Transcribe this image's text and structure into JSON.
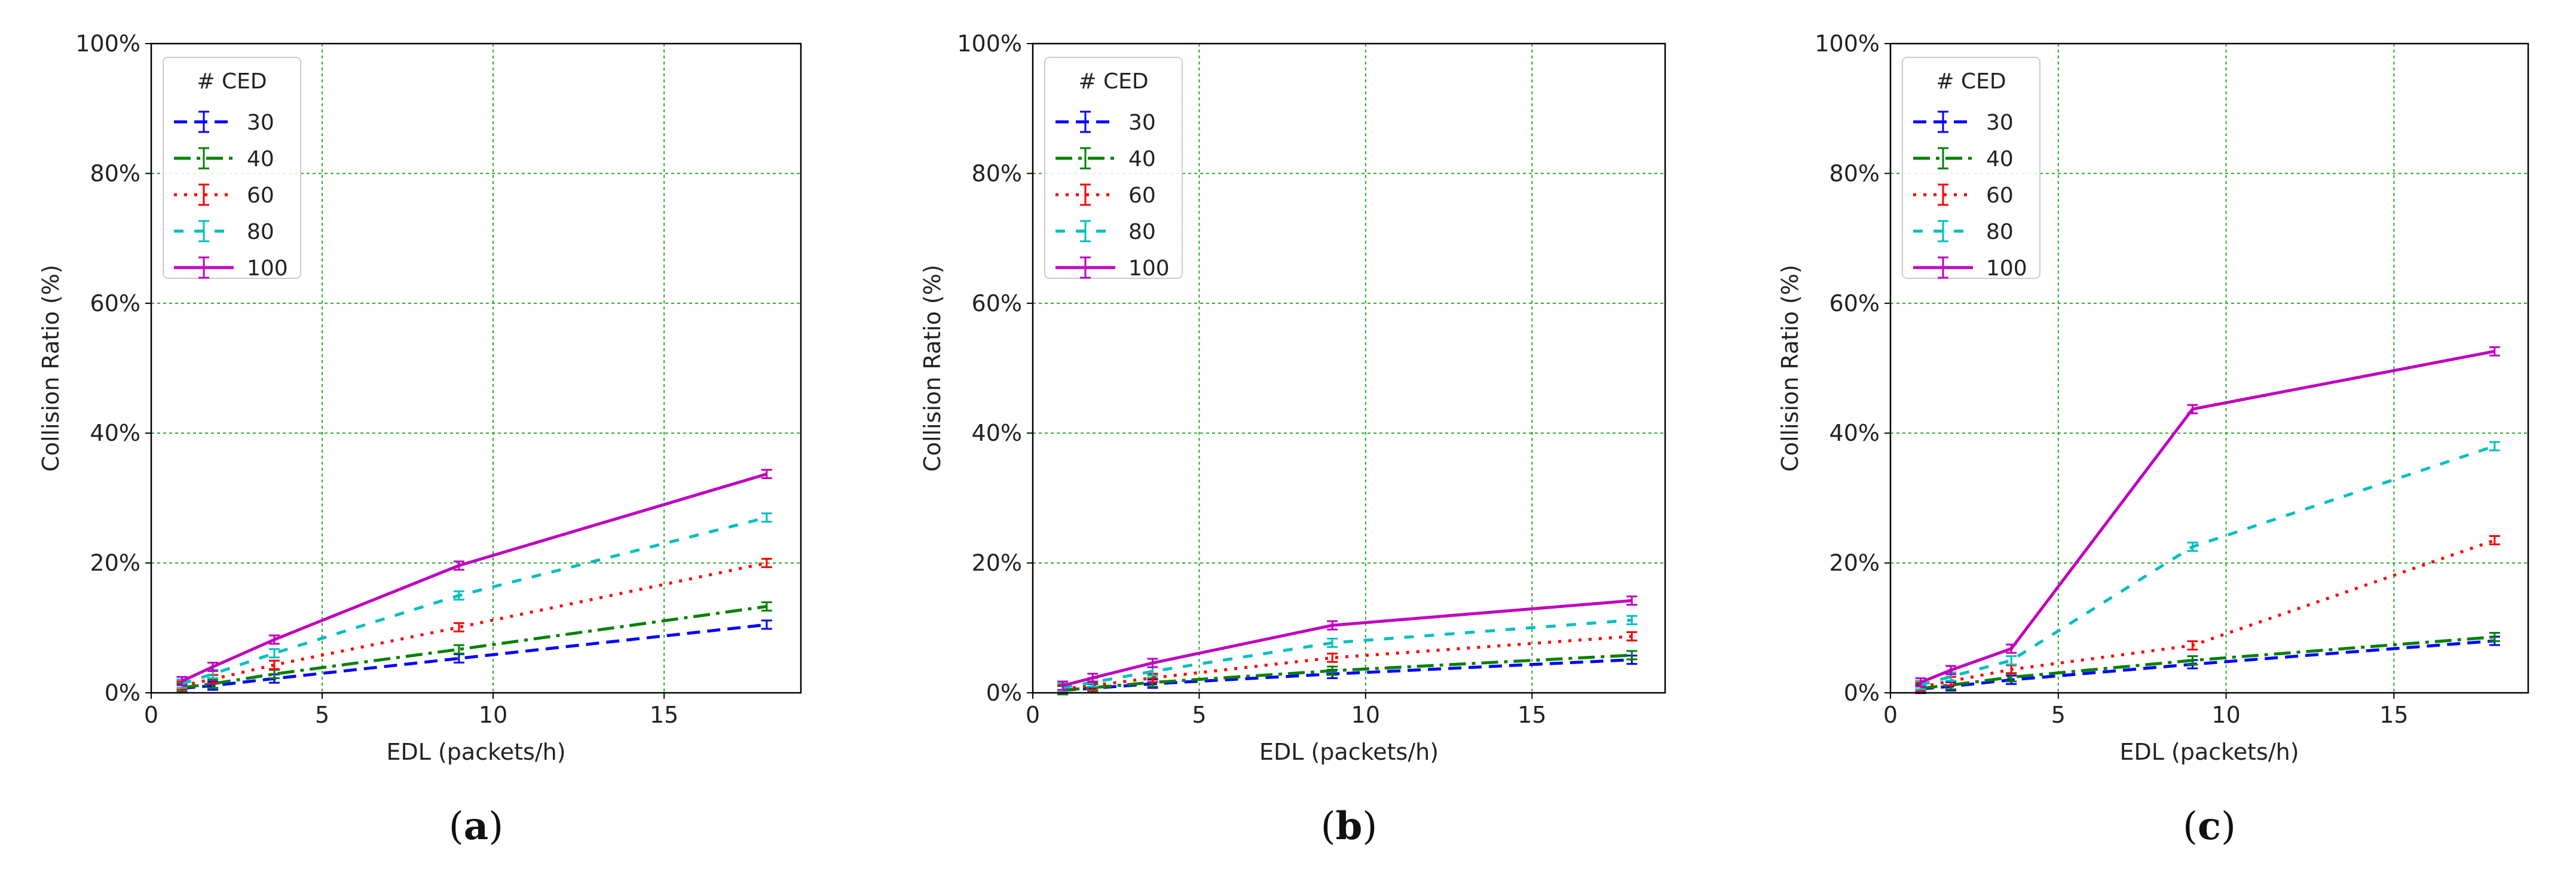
{
  "chart_data": [
    {
      "type": "line",
      "panel_label": "a",
      "xlabel": "EDL (packets/h)",
      "ylabel": "Collision Ratio (%)",
      "xlim": [
        0,
        19
      ],
      "ylim": [
        0,
        100
      ],
      "xticks": [
        "0",
        "5",
        "10",
        "15"
      ],
      "yticks": [
        "0%",
        "20%",
        "40%",
        "60%",
        "80%",
        "100%"
      ],
      "grid": true,
      "legend_title": "# CED",
      "legend_position": "top-left",
      "x": [
        0.9,
        1.8,
        3.6,
        9,
        18
      ],
      "series": [
        {
          "name": "30",
          "color": "#0000ff",
          "values": [
            0.7,
            1.1,
            2.2,
            5.3,
            10.5
          ]
        },
        {
          "name": "40",
          "color": "#008000",
          "values": [
            0.8,
            1.4,
            2.9,
            6.7,
            13.3
          ]
        },
        {
          "name": "60",
          "color": "#ff0000",
          "values": [
            1.1,
            2.1,
            4.3,
            10.1,
            20.0
          ]
        },
        {
          "name": "80",
          "color": "#00bfbf",
          "values": [
            1.4,
            2.9,
            6.1,
            15.0,
            27.0
          ]
        },
        {
          "name": "100",
          "color": "#bf00bf",
          "values": [
            1.8,
            4.0,
            8.2,
            19.6,
            33.7
          ]
        }
      ]
    },
    {
      "type": "line",
      "panel_label": "b",
      "xlabel": "EDL (packets/h)",
      "ylabel": "Collision Ratio (%)",
      "xlim": [
        0,
        19
      ],
      "ylim": [
        0,
        100
      ],
      "xticks": [
        "0",
        "5",
        "10",
        "15"
      ],
      "yticks": [
        "0%",
        "20%",
        "40%",
        "60%",
        "80%",
        "100%"
      ],
      "grid": true,
      "legend_title": "# CED",
      "legend_position": "top-left",
      "x": [
        0.9,
        1.8,
        3.6,
        9,
        18
      ],
      "series": [
        {
          "name": "30",
          "color": "#0000ff",
          "values": [
            0.4,
            0.7,
            1.4,
            2.9,
            5.1
          ]
        },
        {
          "name": "40",
          "color": "#008000",
          "values": [
            0.4,
            0.8,
            1.6,
            3.4,
            5.8
          ]
        },
        {
          "name": "60",
          "color": "#ff0000",
          "values": [
            0.6,
            1.1,
            2.3,
            5.4,
            8.7
          ]
        },
        {
          "name": "80",
          "color": "#00bfbf",
          "values": [
            0.8,
            1.6,
            3.3,
            7.7,
            11.2
          ]
        },
        {
          "name": "100",
          "color": "#bf00bf",
          "values": [
            1.1,
            2.3,
            4.6,
            10.4,
            14.2
          ]
        }
      ]
    },
    {
      "type": "line",
      "panel_label": "c",
      "xlabel": "EDL (packets/h)",
      "ylabel": "Collision Ratio (%)",
      "xlim": [
        0,
        19
      ],
      "ylim": [
        0,
        100
      ],
      "xticks": [
        "0",
        "5",
        "10",
        "15"
      ],
      "yticks": [
        "0%",
        "20%",
        "40%",
        "60%",
        "80%",
        "100%"
      ],
      "grid": true,
      "legend_title": "# CED",
      "legend_position": "top-left",
      "x": [
        0.9,
        1.8,
        3.6,
        9,
        18
      ],
      "series": [
        {
          "name": "30",
          "color": "#0000ff",
          "values": [
            0.6,
            1.0,
            2.0,
            4.4,
            8.0
          ]
        },
        {
          "name": "40",
          "color": "#008000",
          "values": [
            0.7,
            1.2,
            2.4,
            5.0,
            8.6
          ]
        },
        {
          "name": "60",
          "color": "#ff0000",
          "values": [
            0.9,
            1.8,
            3.6,
            7.3,
            23.5
          ]
        },
        {
          "name": "80",
          "color": "#00bfbf",
          "values": [
            1.2,
            2.5,
            5.0,
            22.5,
            38.0
          ]
        },
        {
          "name": "100",
          "color": "#bf00bf",
          "values": [
            1.6,
            3.5,
            6.8,
            43.7,
            52.6
          ]
        }
      ]
    }
  ]
}
